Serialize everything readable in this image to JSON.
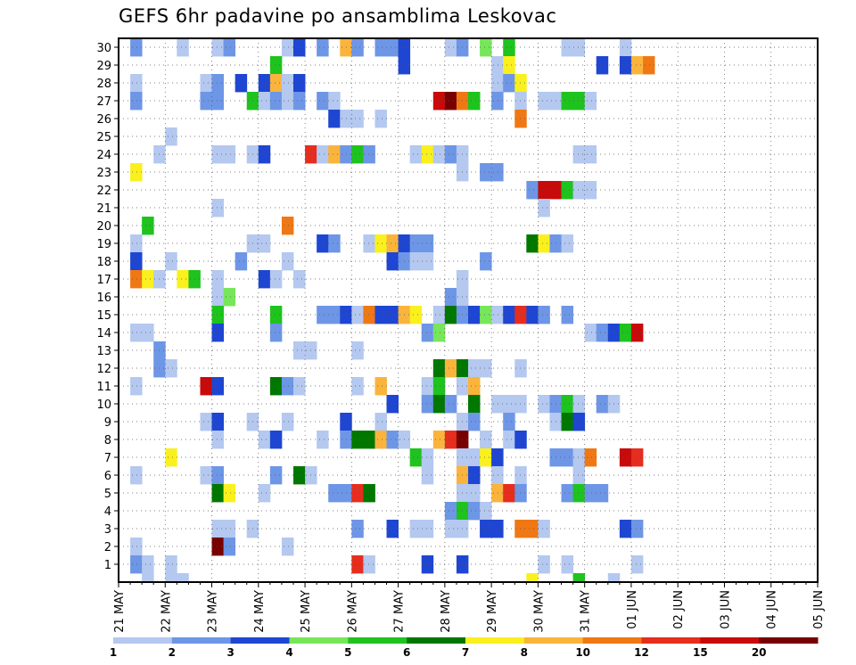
{
  "chart_data": {
    "type": "heatmap",
    "title": "GEFS 6hr padavine po ansamblima Leskovac",
    "xlabel": "",
    "ylabel": "",
    "x_tick_labels": [
      "21 MAY",
      "22 MAY",
      "23 MAY",
      "24 MAY",
      "25 MAY",
      "26 MAY",
      "27 MAY",
      "28 MAY",
      "29 MAY",
      "30 MAY",
      "31 MAY",
      "01 JUN",
      "02 JUN",
      "03 JUN",
      "04 JUN",
      "05 JUN"
    ],
    "y_tick_labels": [
      "1",
      "2",
      "3",
      "4",
      "5",
      "6",
      "7",
      "8",
      "9",
      "10",
      "11",
      "12",
      "13",
      "14",
      "15",
      "16",
      "17",
      "18",
      "19",
      "20",
      "21",
      "22",
      "23",
      "24",
      "25",
      "26",
      "27",
      "28",
      "29",
      "30"
    ],
    "steps_per_day": 4,
    "grid": true,
    "legend": {
      "placement": "bottom",
      "thresholds": [
        "1",
        "2",
        "3",
        "4",
        "5",
        "6",
        "7",
        "8",
        "10",
        "12",
        "15",
        "20"
      ],
      "colors": [
        "#b4c8f0",
        "#6e96e6",
        "#1e46d2",
        "#78e65a",
        "#1ec31e",
        "#007800",
        "#faf01e",
        "#fab43c",
        "#f07814",
        "#e62d1e",
        "#c80a0a",
        "#780000"
      ]
    },
    "cells": [
      [
        1,
        30,
        1
      ],
      [
        5,
        30,
        0
      ],
      [
        8,
        30,
        0
      ],
      [
        9,
        30,
        1
      ],
      [
        14,
        30,
        0
      ],
      [
        15,
        30,
        2
      ],
      [
        17,
        30,
        1
      ],
      [
        19,
        30,
        7
      ],
      [
        20,
        30,
        1
      ],
      [
        22,
        30,
        1
      ],
      [
        23,
        30,
        1
      ],
      [
        24,
        30,
        2
      ],
      [
        28,
        30,
        0
      ],
      [
        29,
        30,
        1
      ],
      [
        31,
        30,
        3
      ],
      [
        33,
        30,
        4
      ],
      [
        38,
        30,
        0
      ],
      [
        39,
        30,
        0
      ],
      [
        43,
        30,
        0
      ],
      [
        13,
        29,
        4
      ],
      [
        24,
        29,
        2
      ],
      [
        32,
        29,
        0
      ],
      [
        33,
        29,
        6
      ],
      [
        41,
        29,
        2
      ],
      [
        43,
        29,
        2
      ],
      [
        44,
        29,
        7
      ],
      [
        45,
        29,
        8
      ],
      [
        1,
        28,
        0
      ],
      [
        7,
        28,
        0
      ],
      [
        8,
        28,
        1
      ],
      [
        10,
        28,
        2
      ],
      [
        12,
        28,
        2
      ],
      [
        13,
        28,
        7
      ],
      [
        14,
        28,
        0
      ],
      [
        15,
        28,
        2
      ],
      [
        32,
        28,
        0
      ],
      [
        33,
        28,
        1
      ],
      [
        34,
        28,
        6
      ],
      [
        1,
        27,
        1
      ],
      [
        7,
        27,
        1
      ],
      [
        8,
        27,
        1
      ],
      [
        11,
        27,
        4
      ],
      [
        12,
        27,
        0
      ],
      [
        13,
        27,
        1
      ],
      [
        14,
        27,
        0
      ],
      [
        15,
        27,
        1
      ],
      [
        17,
        27,
        1
      ],
      [
        18,
        27,
        0
      ],
      [
        27,
        27,
        10
      ],
      [
        28,
        27,
        11
      ],
      [
        29,
        27,
        8
      ],
      [
        30,
        27,
        4
      ],
      [
        32,
        27,
        1
      ],
      [
        34,
        27,
        0
      ],
      [
        36,
        27,
        0
      ],
      [
        37,
        27,
        0
      ],
      [
        38,
        27,
        4
      ],
      [
        39,
        27,
        4
      ],
      [
        40,
        27,
        0
      ],
      [
        18,
        26,
        2
      ],
      [
        19,
        26,
        0
      ],
      [
        20,
        26,
        0
      ],
      [
        22,
        26,
        0
      ],
      [
        34,
        26,
        8
      ],
      [
        4,
        25,
        0
      ],
      [
        3,
        24,
        0
      ],
      [
        8,
        24,
        0
      ],
      [
        9,
        24,
        0
      ],
      [
        11,
        24,
        0
      ],
      [
        12,
        24,
        2
      ],
      [
        16,
        24,
        9
      ],
      [
        17,
        24,
        0
      ],
      [
        18,
        24,
        7
      ],
      [
        19,
        24,
        1
      ],
      [
        20,
        24,
        4
      ],
      [
        21,
        24,
        1
      ],
      [
        25,
        24,
        0
      ],
      [
        26,
        24,
        6
      ],
      [
        27,
        24,
        0
      ],
      [
        28,
        24,
        1
      ],
      [
        29,
        24,
        0
      ],
      [
        39,
        24,
        0
      ],
      [
        40,
        24,
        0
      ],
      [
        1,
        23,
        6
      ],
      [
        29,
        23,
        0
      ],
      [
        31,
        23,
        1
      ],
      [
        32,
        23,
        1
      ],
      [
        35,
        22,
        1
      ],
      [
        36,
        22,
        10
      ],
      [
        37,
        22,
        10
      ],
      [
        38,
        22,
        4
      ],
      [
        39,
        22,
        0
      ],
      [
        40,
        22,
        0
      ],
      [
        8,
        21,
        0
      ],
      [
        36,
        21,
        0
      ],
      [
        2,
        20,
        4
      ],
      [
        14,
        20,
        8
      ],
      [
        1,
        19,
        0
      ],
      [
        11,
        19,
        0
      ],
      [
        12,
        19,
        0
      ],
      [
        17,
        19,
        2
      ],
      [
        18,
        19,
        1
      ],
      [
        21,
        19,
        0
      ],
      [
        22,
        19,
        6
      ],
      [
        23,
        19,
        7
      ],
      [
        24,
        19,
        2
      ],
      [
        25,
        19,
        1
      ],
      [
        26,
        19,
        1
      ],
      [
        35,
        19,
        5
      ],
      [
        36,
        19,
        6
      ],
      [
        37,
        19,
        1
      ],
      [
        38,
        19,
        0
      ],
      [
        1,
        18,
        2
      ],
      [
        4,
        18,
        0
      ],
      [
        10,
        18,
        1
      ],
      [
        14,
        18,
        0
      ],
      [
        23,
        18,
        2
      ],
      [
        24,
        18,
        1
      ],
      [
        25,
        18,
        0
      ],
      [
        26,
        18,
        0
      ],
      [
        31,
        18,
        1
      ],
      [
        1,
        17,
        8
      ],
      [
        2,
        17,
        6
      ],
      [
        3,
        17,
        0
      ],
      [
        5,
        17,
        6
      ],
      [
        6,
        17,
        4
      ],
      [
        8,
        17,
        0
      ],
      [
        12,
        17,
        2
      ],
      [
        13,
        17,
        0
      ],
      [
        15,
        17,
        0
      ],
      [
        29,
        17,
        0
      ],
      [
        8,
        16,
        0
      ],
      [
        9,
        16,
        3
      ],
      [
        28,
        16,
        1
      ],
      [
        29,
        16,
        0
      ],
      [
        8,
        15,
        4
      ],
      [
        13,
        15,
        4
      ],
      [
        17,
        15,
        1
      ],
      [
        18,
        15,
        1
      ],
      [
        19,
        15,
        2
      ],
      [
        20,
        15,
        0
      ],
      [
        21,
        15,
        8
      ],
      [
        22,
        15,
        2
      ],
      [
        23,
        15,
        2
      ],
      [
        24,
        15,
        7
      ],
      [
        25,
        15,
        6
      ],
      [
        27,
        15,
        0
      ],
      [
        28,
        15,
        5
      ],
      [
        29,
        15,
        1
      ],
      [
        30,
        15,
        2
      ],
      [
        31,
        15,
        3
      ],
      [
        32,
        15,
        0
      ],
      [
        33,
        15,
        2
      ],
      [
        34,
        15,
        9
      ],
      [
        35,
        15,
        2
      ],
      [
        36,
        15,
        1
      ],
      [
        38,
        15,
        1
      ],
      [
        1,
        14,
        0
      ],
      [
        2,
        14,
        0
      ],
      [
        8,
        14,
        2
      ],
      [
        13,
        14,
        1
      ],
      [
        26,
        14,
        1
      ],
      [
        27,
        14,
        3
      ],
      [
        40,
        14,
        0
      ],
      [
        41,
        14,
        1
      ],
      [
        42,
        14,
        2
      ],
      [
        43,
        14,
        4
      ],
      [
        44,
        14,
        10
      ],
      [
        3,
        13,
        1
      ],
      [
        15,
        13,
        0
      ],
      [
        16,
        13,
        0
      ],
      [
        20,
        13,
        0
      ],
      [
        3,
        12,
        1
      ],
      [
        4,
        12,
        0
      ],
      [
        27,
        12,
        5
      ],
      [
        28,
        12,
        7
      ],
      [
        29,
        12,
        5
      ],
      [
        30,
        12,
        0
      ],
      [
        31,
        12,
        0
      ],
      [
        34,
        12,
        0
      ],
      [
        1,
        11,
        0
      ],
      [
        7,
        11,
        10
      ],
      [
        8,
        11,
        2
      ],
      [
        13,
        11,
        5
      ],
      [
        14,
        11,
        1
      ],
      [
        15,
        11,
        0
      ],
      [
        20,
        11,
        0
      ],
      [
        22,
        11,
        7
      ],
      [
        26,
        11,
        0
      ],
      [
        27,
        11,
        4
      ],
      [
        29,
        11,
        0
      ],
      [
        30,
        11,
        7
      ],
      [
        23,
        10,
        2
      ],
      [
        26,
        10,
        1
      ],
      [
        27,
        10,
        5
      ],
      [
        28,
        10,
        1
      ],
      [
        30,
        10,
        5
      ],
      [
        32,
        10,
        0
      ],
      [
        33,
        10,
        0
      ],
      [
        34,
        10,
        0
      ],
      [
        36,
        10,
        0
      ],
      [
        37,
        10,
        1
      ],
      [
        38,
        10,
        4
      ],
      [
        39,
        10,
        0
      ],
      [
        41,
        10,
        1
      ],
      [
        42,
        10,
        0
      ],
      [
        7,
        9,
        0
      ],
      [
        8,
        9,
        2
      ],
      [
        11,
        9,
        0
      ],
      [
        14,
        9,
        0
      ],
      [
        19,
        9,
        2
      ],
      [
        22,
        9,
        0
      ],
      [
        29,
        9,
        0
      ],
      [
        30,
        9,
        1
      ],
      [
        33,
        9,
        1
      ],
      [
        37,
        9,
        0
      ],
      [
        38,
        9,
        5
      ],
      [
        39,
        9,
        2
      ],
      [
        8,
        8,
        0
      ],
      [
        12,
        8,
        0
      ],
      [
        13,
        8,
        2
      ],
      [
        17,
        8,
        0
      ],
      [
        19,
        8,
        1
      ],
      [
        20,
        8,
        5
      ],
      [
        21,
        8,
        5
      ],
      [
        22,
        8,
        7
      ],
      [
        23,
        8,
        1
      ],
      [
        24,
        8,
        0
      ],
      [
        27,
        8,
        7
      ],
      [
        28,
        8,
        9
      ],
      [
        29,
        8,
        11
      ],
      [
        31,
        8,
        0
      ],
      [
        33,
        8,
        0
      ],
      [
        34,
        8,
        2
      ],
      [
        4,
        7,
        6
      ],
      [
        25,
        7,
        4
      ],
      [
        26,
        7,
        0
      ],
      [
        29,
        7,
        0
      ],
      [
        30,
        7,
        0
      ],
      [
        31,
        7,
        6
      ],
      [
        32,
        7,
        2
      ],
      [
        37,
        7,
        1
      ],
      [
        38,
        7,
        1
      ],
      [
        39,
        7,
        0
      ],
      [
        40,
        7,
        8
      ],
      [
        43,
        7,
        10
      ],
      [
        44,
        7,
        9
      ],
      [
        1,
        6,
        0
      ],
      [
        7,
        6,
        0
      ],
      [
        8,
        6,
        1
      ],
      [
        13,
        6,
        1
      ],
      [
        15,
        6,
        5
      ],
      [
        16,
        6,
        0
      ],
      [
        26,
        6,
        0
      ],
      [
        29,
        6,
        7
      ],
      [
        30,
        6,
        2
      ],
      [
        32,
        6,
        0
      ],
      [
        34,
        6,
        0
      ],
      [
        39,
        6,
        0
      ],
      [
        8,
        5,
        5
      ],
      [
        9,
        5,
        6
      ],
      [
        12,
        5,
        0
      ],
      [
        18,
        5,
        1
      ],
      [
        19,
        5,
        1
      ],
      [
        20,
        5,
        9
      ],
      [
        21,
        5,
        5
      ],
      [
        29,
        5,
        0
      ],
      [
        30,
        5,
        0
      ],
      [
        32,
        5,
        7
      ],
      [
        33,
        5,
        9
      ],
      [
        34,
        5,
        1
      ],
      [
        38,
        5,
        1
      ],
      [
        39,
        5,
        4
      ],
      [
        40,
        5,
        1
      ],
      [
        41,
        5,
        1
      ],
      [
        28,
        4,
        1
      ],
      [
        29,
        4,
        4
      ],
      [
        30,
        4,
        1
      ],
      [
        31,
        4,
        0
      ],
      [
        8,
        3,
        0
      ],
      [
        9,
        3,
        0
      ],
      [
        11,
        3,
        0
      ],
      [
        20,
        3,
        1
      ],
      [
        23,
        3,
        2
      ],
      [
        25,
        3,
        0
      ],
      [
        26,
        3,
        0
      ],
      [
        28,
        3,
        0
      ],
      [
        29,
        3,
        0
      ],
      [
        31,
        3,
        2
      ],
      [
        32,
        3,
        2
      ],
      [
        34,
        3,
        8
      ],
      [
        35,
        3,
        8
      ],
      [
        36,
        3,
        0
      ],
      [
        43,
        3,
        2
      ],
      [
        44,
        3,
        1
      ],
      [
        1,
        2,
        0
      ],
      [
        8,
        2,
        11
      ],
      [
        9,
        2,
        1
      ],
      [
        14,
        2,
        0
      ],
      [
        1,
        1,
        1
      ],
      [
        2,
        1,
        0
      ],
      [
        4,
        1,
        0
      ],
      [
        20,
        1,
        9
      ],
      [
        21,
        1,
        0
      ],
      [
        26,
        1,
        2
      ],
      [
        29,
        1,
        2
      ],
      [
        36,
        1,
        0
      ],
      [
        38,
        1,
        0
      ],
      [
        44,
        1,
        0
      ],
      [
        2,
        0,
        0
      ],
      [
        4,
        0,
        0
      ],
      [
        5,
        0,
        0
      ],
      [
        35,
        0,
        6
      ],
      [
        39,
        0,
        4
      ],
      [
        42,
        0,
        0
      ]
    ]
  }
}
